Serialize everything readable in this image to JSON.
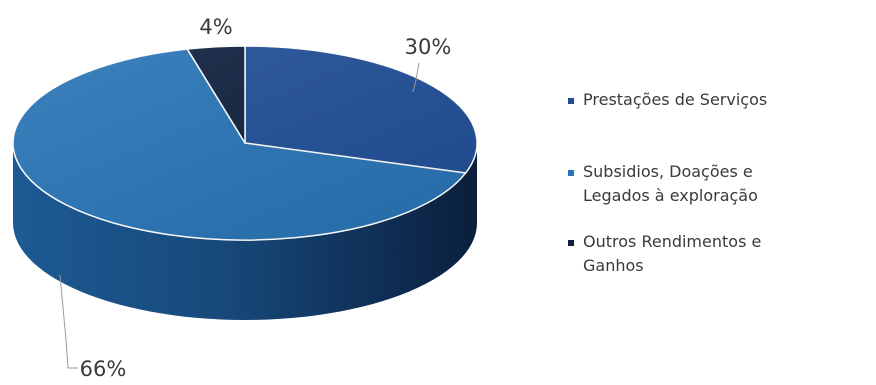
{
  "chart_data": {
    "type": "pie",
    "title": "",
    "categories": [
      "Prestações de Serviços",
      "Subsidios, Doações e Legados à exploração",
      "Outros Rendimentos e Ganhos"
    ],
    "values": [
      30,
      66,
      4
    ],
    "value_labels": [
      "30%",
      "66%",
      "4%"
    ],
    "colors": [
      "#1f4e97",
      "#2774b6",
      "#0d1f3d"
    ],
    "legend": "right",
    "style": "3d"
  },
  "legend": {
    "items": [
      {
        "label": "Prestações de Serviços",
        "color": "#1f4e97"
      },
      {
        "label": "Subsidios, Doações e Legados à exploração",
        "color": "#2774b6"
      },
      {
        "label": "Outros Rendimentos e Ganhos",
        "color": "#0d1f3d"
      }
    ]
  }
}
